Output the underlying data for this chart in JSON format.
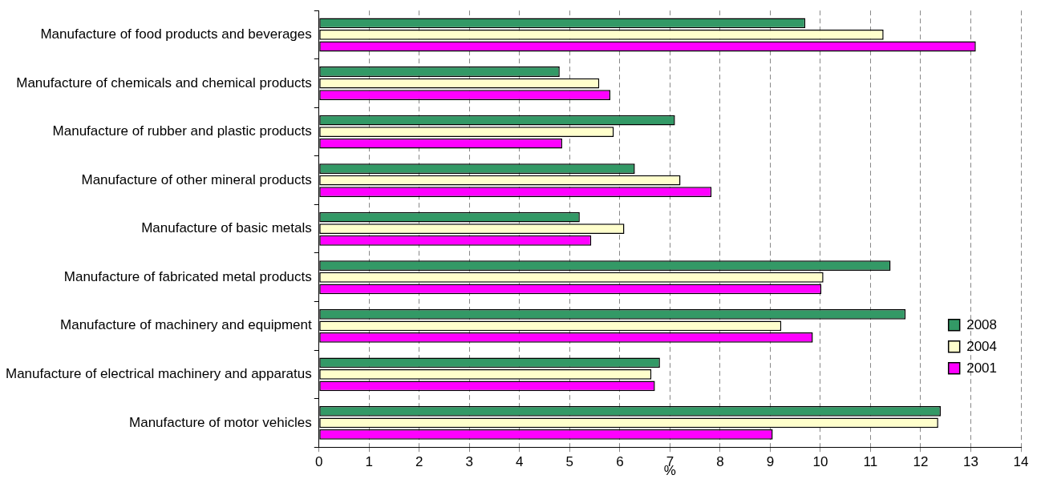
{
  "chart_data": {
    "type": "bar",
    "orientation": "horizontal",
    "xlabel": "%",
    "categories": [
      "Manufacture of food products and beverages",
      "Manufacture of chemicals and chemical products",
      "Manufacture of rubber and plastic products",
      "Manufacture of other mineral products",
      "Manufacture of basic metals",
      "Manufacture of fabricated metal products",
      "Manufacture of machinery and equipment",
      "Manufacture of electrical machinery and apparatus",
      "Manufacture of motor vehicles"
    ],
    "series": [
      {
        "name": "2008",
        "color": "#339966",
        "values": [
          9.7,
          4.8,
          7.1,
          6.3,
          5.2,
          11.4,
          11.7,
          6.8,
          12.4
        ]
      },
      {
        "name": "2004",
        "color": "#ffffcc",
        "values": [
          11.26,
          5.59,
          5.88,
          7.21,
          6.09,
          10.06,
          9.22,
          6.63,
          12.35
        ]
      },
      {
        "name": "2001",
        "color": "#ff00ff",
        "values": [
          13.1,
          5.81,
          4.85,
          7.83,
          5.43,
          10.02,
          9.85,
          6.7,
          9.05
        ]
      }
    ],
    "xlim": [
      0,
      14
    ],
    "xticks": [
      0,
      1,
      2,
      3,
      4,
      5,
      6,
      7,
      8,
      9,
      10,
      11,
      12,
      13,
      14
    ],
    "grid": "x",
    "legend": "right"
  }
}
